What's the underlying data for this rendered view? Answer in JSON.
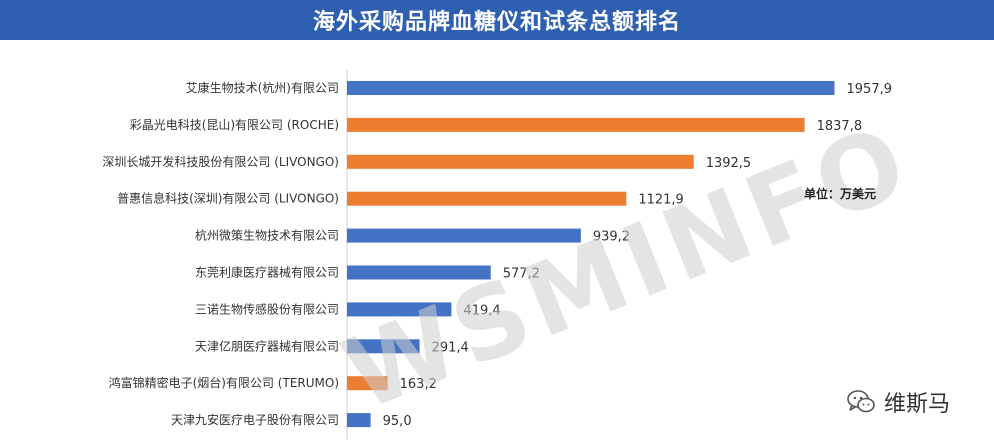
{
  "title": "海外采购品牌血糖仪和试条总额排名",
  "unit_label": "单位：万美元",
  "watermark": "WSMINFO",
  "brand": {
    "name": "维斯马",
    "icon": "wechat-bubble-icon"
  },
  "colors": {
    "title_bg": "#2f5fb0",
    "blue": "#4472c4",
    "orange": "#ed7d31"
  },
  "chart_data": {
    "type": "bar",
    "orientation": "horizontal",
    "value_decimal_separator": ",",
    "xlim": [
      0,
      2000
    ],
    "grid": false,
    "categories": [
      "艾康生物技术(杭州)有限公司",
      "彩晶光电科技(昆山)有限公司 (ROCHE)",
      "深圳长城开发科技股份有限公司 (LIVONGO)",
      "普惠信息科技(深圳)有限公司 (LIVONGO)",
      "杭州微策生物技术有限公司",
      "东莞利康医疗器械有限公司",
      "三诺生物传感股份有限公司",
      "天津亿朋医疗器械有限公司",
      "鸿富锦精密电子(烟台)有限公司 (TERUMO)",
      "天津九安医疗电子股份有限公司"
    ],
    "values": [
      1957.9,
      1837.8,
      1392.5,
      1121.9,
      939.2,
      577.2,
      419.4,
      291.4,
      163.2,
      95.0
    ],
    "value_labels": [
      "1957,9",
      "1837,8",
      "1392,5",
      "1121,9",
      "939,2",
      "577,2",
      "419,4",
      "291,4",
      "163,2",
      "95,0"
    ],
    "bar_colors": [
      "blue",
      "orange",
      "orange",
      "orange",
      "blue",
      "blue",
      "blue",
      "blue",
      "orange",
      "blue"
    ]
  }
}
